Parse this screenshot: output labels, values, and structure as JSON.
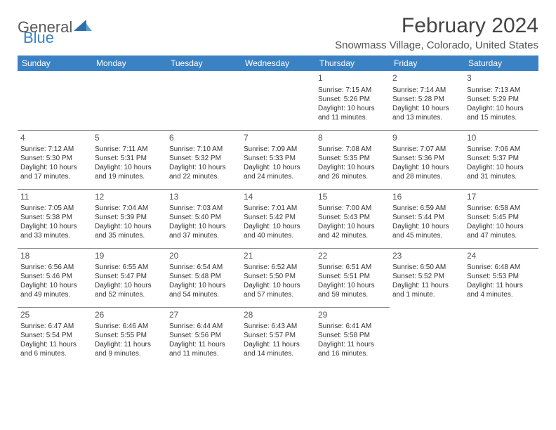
{
  "logo": {
    "word1": "General",
    "word2": "Blue"
  },
  "title": "February 2024",
  "location": "Snowmass Village, Colorado, United States",
  "colors": {
    "header_bg": "#3b82c4",
    "header_fg": "#ffffff",
    "text": "#333333",
    "grid_line": "#888888",
    "logo_gray": "#5a5a5a",
    "logo_blue": "#3b82c4",
    "background": "#ffffff"
  },
  "day_headers": [
    "Sunday",
    "Monday",
    "Tuesday",
    "Wednesday",
    "Thursday",
    "Friday",
    "Saturday"
  ],
  "weeks": [
    [
      null,
      null,
      null,
      null,
      {
        "n": "1",
        "sr": "7:15 AM",
        "ss": "5:26 PM",
        "dl": "10 hours and 11 minutes."
      },
      {
        "n": "2",
        "sr": "7:14 AM",
        "ss": "5:28 PM",
        "dl": "10 hours and 13 minutes."
      },
      {
        "n": "3",
        "sr": "7:13 AM",
        "ss": "5:29 PM",
        "dl": "10 hours and 15 minutes."
      }
    ],
    [
      {
        "n": "4",
        "sr": "7:12 AM",
        "ss": "5:30 PM",
        "dl": "10 hours and 17 minutes."
      },
      {
        "n": "5",
        "sr": "7:11 AM",
        "ss": "5:31 PM",
        "dl": "10 hours and 19 minutes."
      },
      {
        "n": "6",
        "sr": "7:10 AM",
        "ss": "5:32 PM",
        "dl": "10 hours and 22 minutes."
      },
      {
        "n": "7",
        "sr": "7:09 AM",
        "ss": "5:33 PM",
        "dl": "10 hours and 24 minutes."
      },
      {
        "n": "8",
        "sr": "7:08 AM",
        "ss": "5:35 PM",
        "dl": "10 hours and 26 minutes."
      },
      {
        "n": "9",
        "sr": "7:07 AM",
        "ss": "5:36 PM",
        "dl": "10 hours and 28 minutes."
      },
      {
        "n": "10",
        "sr": "7:06 AM",
        "ss": "5:37 PM",
        "dl": "10 hours and 31 minutes."
      }
    ],
    [
      {
        "n": "11",
        "sr": "7:05 AM",
        "ss": "5:38 PM",
        "dl": "10 hours and 33 minutes."
      },
      {
        "n": "12",
        "sr": "7:04 AM",
        "ss": "5:39 PM",
        "dl": "10 hours and 35 minutes."
      },
      {
        "n": "13",
        "sr": "7:03 AM",
        "ss": "5:40 PM",
        "dl": "10 hours and 37 minutes."
      },
      {
        "n": "14",
        "sr": "7:01 AM",
        "ss": "5:42 PM",
        "dl": "10 hours and 40 minutes."
      },
      {
        "n": "15",
        "sr": "7:00 AM",
        "ss": "5:43 PM",
        "dl": "10 hours and 42 minutes."
      },
      {
        "n": "16",
        "sr": "6:59 AM",
        "ss": "5:44 PM",
        "dl": "10 hours and 45 minutes."
      },
      {
        "n": "17",
        "sr": "6:58 AM",
        "ss": "5:45 PM",
        "dl": "10 hours and 47 minutes."
      }
    ],
    [
      {
        "n": "18",
        "sr": "6:56 AM",
        "ss": "5:46 PM",
        "dl": "10 hours and 49 minutes."
      },
      {
        "n": "19",
        "sr": "6:55 AM",
        "ss": "5:47 PM",
        "dl": "10 hours and 52 minutes."
      },
      {
        "n": "20",
        "sr": "6:54 AM",
        "ss": "5:48 PM",
        "dl": "10 hours and 54 minutes."
      },
      {
        "n": "21",
        "sr": "6:52 AM",
        "ss": "5:50 PM",
        "dl": "10 hours and 57 minutes."
      },
      {
        "n": "22",
        "sr": "6:51 AM",
        "ss": "5:51 PM",
        "dl": "10 hours and 59 minutes."
      },
      {
        "n": "23",
        "sr": "6:50 AM",
        "ss": "5:52 PM",
        "dl": "11 hours and 1 minute."
      },
      {
        "n": "24",
        "sr": "6:48 AM",
        "ss": "5:53 PM",
        "dl": "11 hours and 4 minutes."
      }
    ],
    [
      {
        "n": "25",
        "sr": "6:47 AM",
        "ss": "5:54 PM",
        "dl": "11 hours and 6 minutes."
      },
      {
        "n": "26",
        "sr": "6:46 AM",
        "ss": "5:55 PM",
        "dl": "11 hours and 9 minutes."
      },
      {
        "n": "27",
        "sr": "6:44 AM",
        "ss": "5:56 PM",
        "dl": "11 hours and 11 minutes."
      },
      {
        "n": "28",
        "sr": "6:43 AM",
        "ss": "5:57 PM",
        "dl": "11 hours and 14 minutes."
      },
      {
        "n": "29",
        "sr": "6:41 AM",
        "ss": "5:58 PM",
        "dl": "11 hours and 16 minutes."
      },
      null,
      null
    ]
  ],
  "labels": {
    "sunrise": "Sunrise: ",
    "sunset": "Sunset: ",
    "daylight": "Daylight: "
  }
}
